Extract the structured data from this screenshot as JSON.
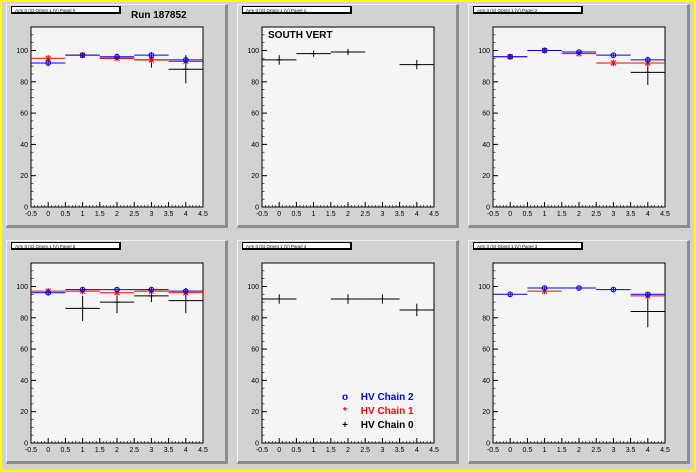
{
  "run_label": "Run 187852",
  "south_label": "SOUTH VERT",
  "legend": {
    "items": [
      {
        "label": "HV Chain 2",
        "symbol": "o",
        "color": "#0000ee"
      },
      {
        "label": "HV Chain 1",
        "symbol": "*",
        "color": "#ff0000"
      },
      {
        "label": "HV Chain 0",
        "symbol": "+",
        "color": "#000000"
      }
    ]
  },
  "colors": {
    "chain2": "#0000ee",
    "chain1": "#ff0000",
    "chain0": "#000000",
    "frame": "#ffff00",
    "background": "#d2d2d2"
  },
  "chart_data": [
    {
      "type": "scatter",
      "title": "Arm 0 (S) Orient 1 (V) Panel 0",
      "xlim": [
        -0.5,
        4.5
      ],
      "ylim": [
        0,
        115
      ],
      "xticks": [
        "-0.5",
        "0",
        "0.5",
        "1",
        "1.5",
        "2",
        "2.5",
        "3",
        "3.5",
        "4",
        "4.5"
      ],
      "yticks": [
        "0",
        "20",
        "40",
        "60",
        "80",
        "100"
      ],
      "series": [
        {
          "name": "HV Chain 0",
          "x": [
            2,
            3,
            4
          ],
          "y": [
            95,
            94,
            88
          ],
          "yerr": [
            0,
            5,
            9
          ]
        },
        {
          "name": "HV Chain 1",
          "x": [
            0,
            1,
            2,
            3,
            4
          ],
          "y": [
            95,
            97,
            95,
            94,
            93
          ],
          "yerr": [
            2,
            2,
            2,
            2,
            2
          ]
        },
        {
          "name": "HV Chain 2",
          "x": [
            0,
            1,
            2,
            3,
            4
          ],
          "y": [
            92,
            97,
            96,
            97,
            94
          ],
          "yerr": [
            2,
            1,
            2,
            2,
            2
          ]
        }
      ]
    },
    {
      "type": "scatter",
      "title": "Arm 0 (S) Orient 1 (V) Panel 1",
      "xlim": [
        -0.5,
        4.5
      ],
      "ylim": [
        0,
        115
      ],
      "xticks": [
        "-0.5",
        "0",
        "0.5",
        "1",
        "1.5",
        "2",
        "2.5",
        "3",
        "3.5",
        "4",
        "4.5"
      ],
      "yticks": [
        "0",
        "20",
        "40",
        "60",
        "80",
        "100"
      ],
      "series": [
        {
          "name": "HV Chain 0",
          "x": [
            0,
            1,
            2,
            4
          ],
          "y": [
            94,
            98,
            99,
            91
          ],
          "yerr": [
            3,
            2,
            2,
            3
          ]
        }
      ]
    },
    {
      "type": "scatter",
      "title": "Arm 0 (S) Orient 1 (V) Panel 2",
      "xlim": [
        -0.5,
        4.5
      ],
      "ylim": [
        0,
        115
      ],
      "xticks": [
        "-0.5",
        "0",
        "0.5",
        "1",
        "1.5",
        "2",
        "2.5",
        "3",
        "3.5",
        "4",
        "4.5"
      ],
      "yticks": [
        "0",
        "20",
        "40",
        "60",
        "80",
        "100"
      ],
      "series": [
        {
          "name": "HV Chain 0",
          "x": [
            4
          ],
          "y": [
            86
          ],
          "yerr": [
            8
          ]
        },
        {
          "name": "HV Chain 1",
          "x": [
            0,
            1,
            2,
            3,
            4
          ],
          "y": [
            96,
            100,
            98,
            92,
            92
          ],
          "yerr": [
            1,
            1,
            1,
            2,
            2
          ]
        },
        {
          "name": "HV Chain 2",
          "x": [
            0,
            1,
            2,
            3,
            4
          ],
          "y": [
            96,
            100,
            99,
            97,
            94
          ],
          "yerr": [
            1,
            1,
            1,
            1,
            2
          ]
        }
      ]
    },
    {
      "type": "scatter",
      "title": "Arm 0 (S) Orient 1 (V) Panel 5",
      "xlim": [
        -0.5,
        4.5
      ],
      "ylim": [
        0,
        115
      ],
      "xticks": [
        "-0.5",
        "0",
        "0.5",
        "1",
        "1.5",
        "2",
        "2.5",
        "3",
        "3.5",
        "4",
        "4.5"
      ],
      "yticks": [
        "0",
        "20",
        "40",
        "60",
        "80",
        "100"
      ],
      "series": [
        {
          "name": "HV Chain 0",
          "x": [
            1,
            2,
            3,
            4
          ],
          "y": [
            86,
            90,
            94,
            91
          ],
          "yerr": [
            8,
            7,
            4,
            8
          ]
        },
        {
          "name": "HV Chain 1",
          "x": [
            0,
            1,
            2,
            3,
            4
          ],
          "y": [
            97,
            97,
            96,
            97,
            96
          ],
          "yerr": [
            2,
            2,
            2,
            2,
            2
          ]
        },
        {
          "name": "HV Chain 2",
          "x": [
            0,
            1,
            2,
            3,
            4
          ],
          "y": [
            96,
            98,
            98,
            98,
            97
          ],
          "yerr": [
            1,
            1,
            1,
            1,
            1
          ]
        }
      ]
    },
    {
      "type": "scatter",
      "title": "Arm 0 (S) Orient 1 (V) Panel 4",
      "xlim": [
        -0.5,
        4.5
      ],
      "ylim": [
        0,
        115
      ],
      "xticks": [
        "-0.5",
        "0",
        "0.5",
        "1",
        "1.5",
        "2",
        "2.5",
        "3",
        "3.5",
        "4",
        "4.5"
      ],
      "yticks": [
        "0",
        "20",
        "40",
        "60",
        "80",
        "100"
      ],
      "series": [
        {
          "name": "HV Chain 0",
          "x": [
            0,
            2,
            3,
            4
          ],
          "y": [
            92,
            92,
            92,
            85
          ],
          "yerr": [
            3,
            3,
            3,
            4
          ]
        }
      ]
    },
    {
      "type": "scatter",
      "title": "Arm 0 (S) Orient 1 (V) Panel 3",
      "xlim": [
        -0.5,
        4.5
      ],
      "ylim": [
        0,
        115
      ],
      "xticks": [
        "-0.5",
        "0",
        "0.5",
        "1",
        "1.5",
        "2",
        "2.5",
        "3",
        "3.5",
        "4",
        "4.5"
      ],
      "yticks": [
        "0",
        "20",
        "40",
        "60",
        "80",
        "100"
      ],
      "series": [
        {
          "name": "HV Chain 0",
          "x": [
            4
          ],
          "y": [
            84
          ],
          "yerr": [
            10
          ]
        },
        {
          "name": "HV Chain 1",
          "x": [
            1,
            4
          ],
          "y": [
            97,
            94
          ],
          "yerr": [
            1,
            2
          ]
        },
        {
          "name": "HV Chain 2",
          "x": [
            0,
            1,
            2,
            3,
            4
          ],
          "y": [
            95,
            99,
            99,
            98,
            95
          ],
          "yerr": [
            1,
            1,
            1,
            1,
            1
          ]
        }
      ]
    }
  ]
}
